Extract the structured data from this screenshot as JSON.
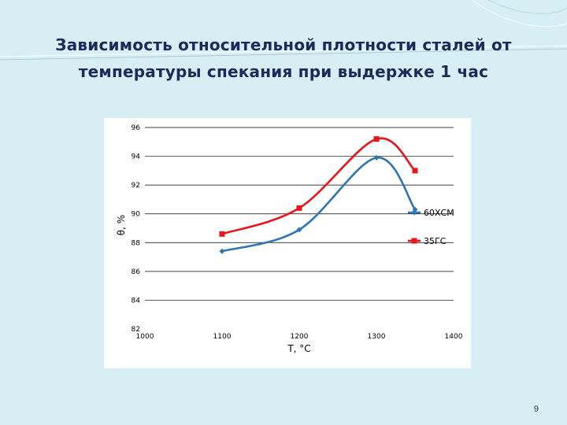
{
  "slide": {
    "title_line1": "Зависимость относительной плотности сталей от",
    "title_line2": "температуры спекания  при выдержке 1 час",
    "page_number": "9"
  },
  "colors": {
    "background": "#d6eef4",
    "title": "#1a2a5a",
    "series_60xcm": "#2e75b6",
    "series_35gs": "#e8151b"
  },
  "chart_data": {
    "type": "line",
    "xlabel": "T, °C",
    "ylabel": "θ, %",
    "xlim": [
      1000,
      1400
    ],
    "ylim": [
      82,
      96
    ],
    "x_ticks": [
      1000,
      1100,
      1200,
      1300,
      1400
    ],
    "y_ticks": [
      82,
      84,
      86,
      88,
      90,
      92,
      94,
      96
    ],
    "grid": true,
    "legend_position": "right",
    "series": [
      {
        "name": "60ХСМ",
        "marker": "diamond",
        "color": "#2e75b6",
        "x": [
          1100,
          1200,
          1300,
          1350
        ],
        "y": [
          87.4,
          88.9,
          93.9,
          90.3
        ]
      },
      {
        "name": "35ГС",
        "marker": "square",
        "color": "#e8151b",
        "x": [
          1100,
          1200,
          1300,
          1350
        ],
        "y": [
          88.6,
          90.4,
          95.2,
          93.0
        ]
      }
    ]
  }
}
